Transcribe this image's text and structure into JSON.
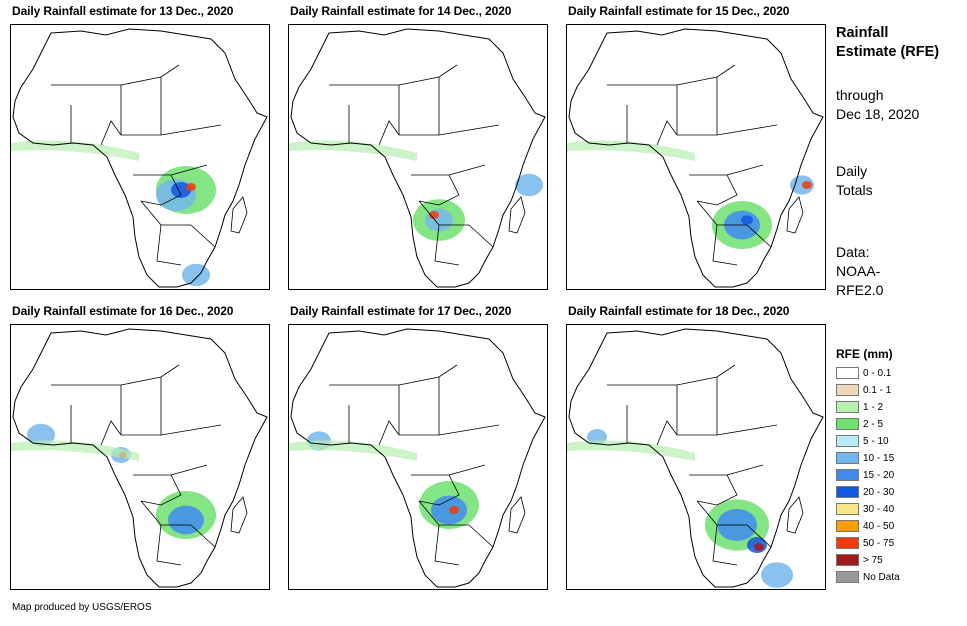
{
  "maps": [
    {
      "title": "Daily Rainfall estimate for 13 Dec., 2020"
    },
    {
      "title": "Daily Rainfall estimate for 14 Dec., 2020"
    },
    {
      "title": "Daily Rainfall estimate for 15 Dec., 2020"
    },
    {
      "title": "Daily Rainfall estimate for 16 Dec., 2020"
    },
    {
      "title": "Daily Rainfall estimate for 17 Dec., 2020"
    },
    {
      "title": "Daily Rainfall estimate for 18 Dec., 2020"
    }
  ],
  "sidebar": {
    "title": "Rainfall Estimate (RFE)",
    "through": "through",
    "through_date": "Dec 18, 2020",
    "daily_line1": "Daily",
    "daily_line2": "Totals",
    "data_line1": "Data:",
    "data_line2": "NOAA-",
    "data_line3": "RFE2.0"
  },
  "legend": {
    "title": "RFE (mm)",
    "items": [
      {
        "label": "0 - 0.1",
        "color": "#ffffff"
      },
      {
        "label": "0.1 - 1",
        "color": "#ecd9b9"
      },
      {
        "label": "1 - 2",
        "color": "#b8f0b0"
      },
      {
        "label": "2 - 5",
        "color": "#6ee16e"
      },
      {
        "label": "5 - 10",
        "color": "#b7ecf6"
      },
      {
        "label": "10 - 15",
        "color": "#74b6ec"
      },
      {
        "label": "15 - 20",
        "color": "#3f8bee"
      },
      {
        "label": "20 - 30",
        "color": "#1257e0"
      },
      {
        "label": "30 - 40",
        "color": "#f7e58a"
      },
      {
        "label": "40 - 50",
        "color": "#f59f00"
      },
      {
        "label": "50 - 75",
        "color": "#f23b0c"
      },
      {
        "label": "> 75",
        "color": "#a11a1a"
      },
      {
        "label": "No Data",
        "color": "#9a9a9a"
      }
    ]
  },
  "footer": "Map produced by USGS/EROS"
}
